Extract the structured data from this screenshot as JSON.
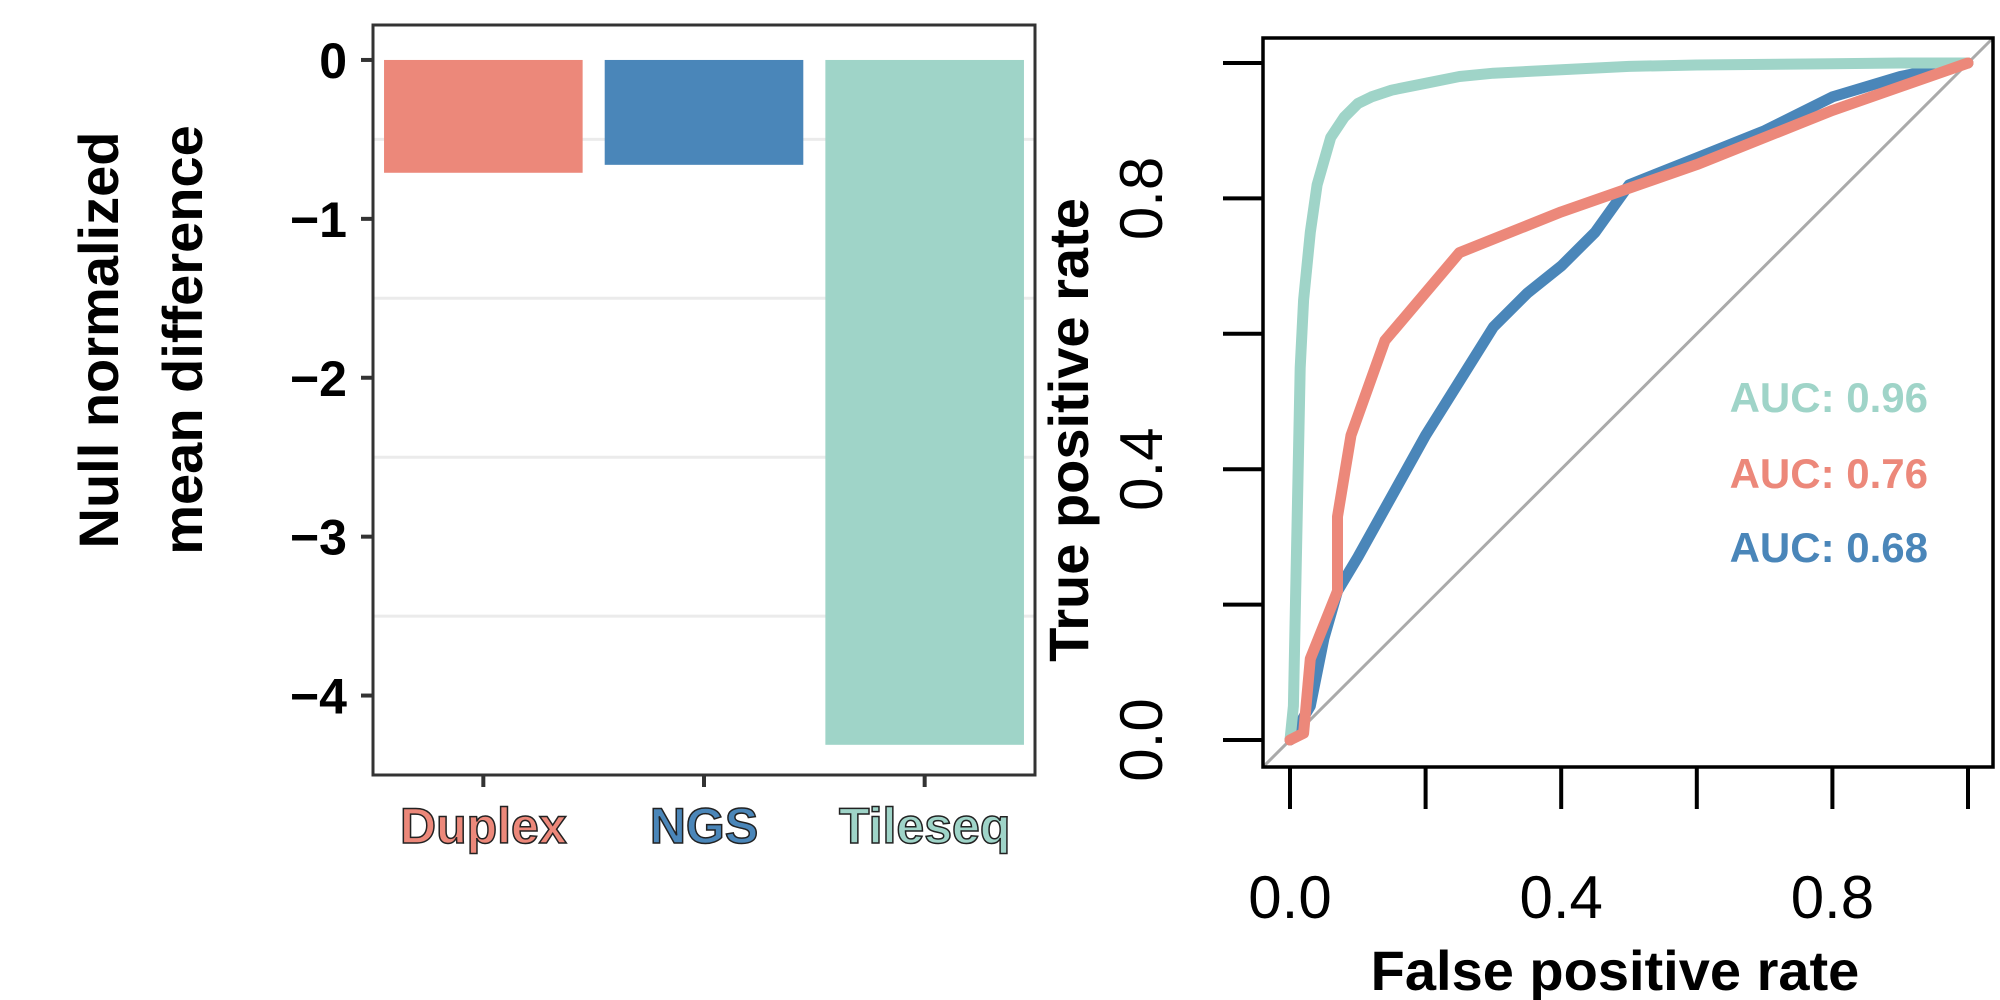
{
  "colors": {
    "duplex": "#EC887A",
    "ngs": "#4A86B9",
    "tileseq": "#9FD4C8",
    "diagonal": "#AAAAAA",
    "axis": "#333333",
    "grid": "#EBEBEB"
  },
  "chart_data": [
    {
      "type": "bar",
      "ylabel": [
        "Null normalized",
        "mean difference"
      ],
      "categories": [
        "Duplex",
        "NGS",
        "Tileseq"
      ],
      "category_colors": [
        "duplex",
        "ngs",
        "tileseq"
      ],
      "values": [
        -0.71,
        -0.66,
        -4.31
      ],
      "ylim": [
        -4.5,
        0.22
      ],
      "yticks": [
        0,
        -1,
        -2,
        -3,
        -4
      ],
      "ytick_labels": [
        "0",
        "−1",
        "−2",
        "−3",
        "−4"
      ],
      "grid": true
    },
    {
      "type": "line",
      "xlabel": "False positive rate",
      "ylabel": "True positive rate",
      "xlim": [
        0,
        1
      ],
      "ylim": [
        0,
        1
      ],
      "xticks": [
        0,
        0.2,
        0.4,
        0.6,
        0.8,
        1.0
      ],
      "xtick_labels": [
        "0.0",
        "",
        "0.4",
        "",
        "0.8",
        ""
      ],
      "yticks": [
        0,
        0.2,
        0.4,
        0.6,
        0.8,
        1.0
      ],
      "ytick_labels": [
        "0.0",
        "",
        "0.4",
        "",
        "0.8",
        ""
      ],
      "reference_line": [
        [
          0,
          0
        ],
        [
          1,
          1
        ]
      ],
      "series": [
        {
          "name": "Tileseq",
          "color": "tileseq",
          "auc_label": "AUC: 0.96",
          "x": [
            0,
            0.005,
            0.01,
            0.015,
            0.02,
            0.03,
            0.04,
            0.06,
            0.08,
            0.1,
            0.12,
            0.15,
            0.2,
            0.25,
            0.3,
            0.4,
            0.5,
            0.6,
            0.7,
            0.8,
            0.9,
            1.0
          ],
          "y": [
            0,
            0.05,
            0.3,
            0.55,
            0.65,
            0.75,
            0.82,
            0.89,
            0.92,
            0.94,
            0.95,
            0.96,
            0.97,
            0.98,
            0.985,
            0.99,
            0.995,
            0.997,
            0.998,
            0.999,
            1.0,
            1.0
          ]
        },
        {
          "name": "Duplex",
          "color": "duplex",
          "auc_label": "AUC: 0.76",
          "x": [
            0,
            0.02,
            0.03,
            0.05,
            0.07,
            0.07,
            0.09,
            0.14,
            0.25,
            0.4,
            0.6,
            0.8,
            1.0
          ],
          "y": [
            0,
            0.01,
            0.12,
            0.17,
            0.22,
            0.33,
            0.45,
            0.59,
            0.72,
            0.78,
            0.85,
            0.93,
            1.0
          ]
        },
        {
          "name": "NGS",
          "color": "ngs",
          "auc_label": "AUC: 0.68",
          "x": [
            0,
            0.03,
            0.05,
            0.07,
            0.1,
            0.15,
            0.2,
            0.25,
            0.3,
            0.35,
            0.4,
            0.45,
            0.5,
            0.6,
            0.7,
            0.8,
            0.9,
            1.0
          ],
          "y": [
            0,
            0.05,
            0.15,
            0.22,
            0.27,
            0.36,
            0.45,
            0.53,
            0.61,
            0.66,
            0.7,
            0.75,
            0.82,
            0.86,
            0.9,
            0.95,
            0.98,
            1.0
          ]
        }
      ],
      "legend_order": [
        "Tileseq",
        "Duplex",
        "NGS"
      ]
    }
  ]
}
